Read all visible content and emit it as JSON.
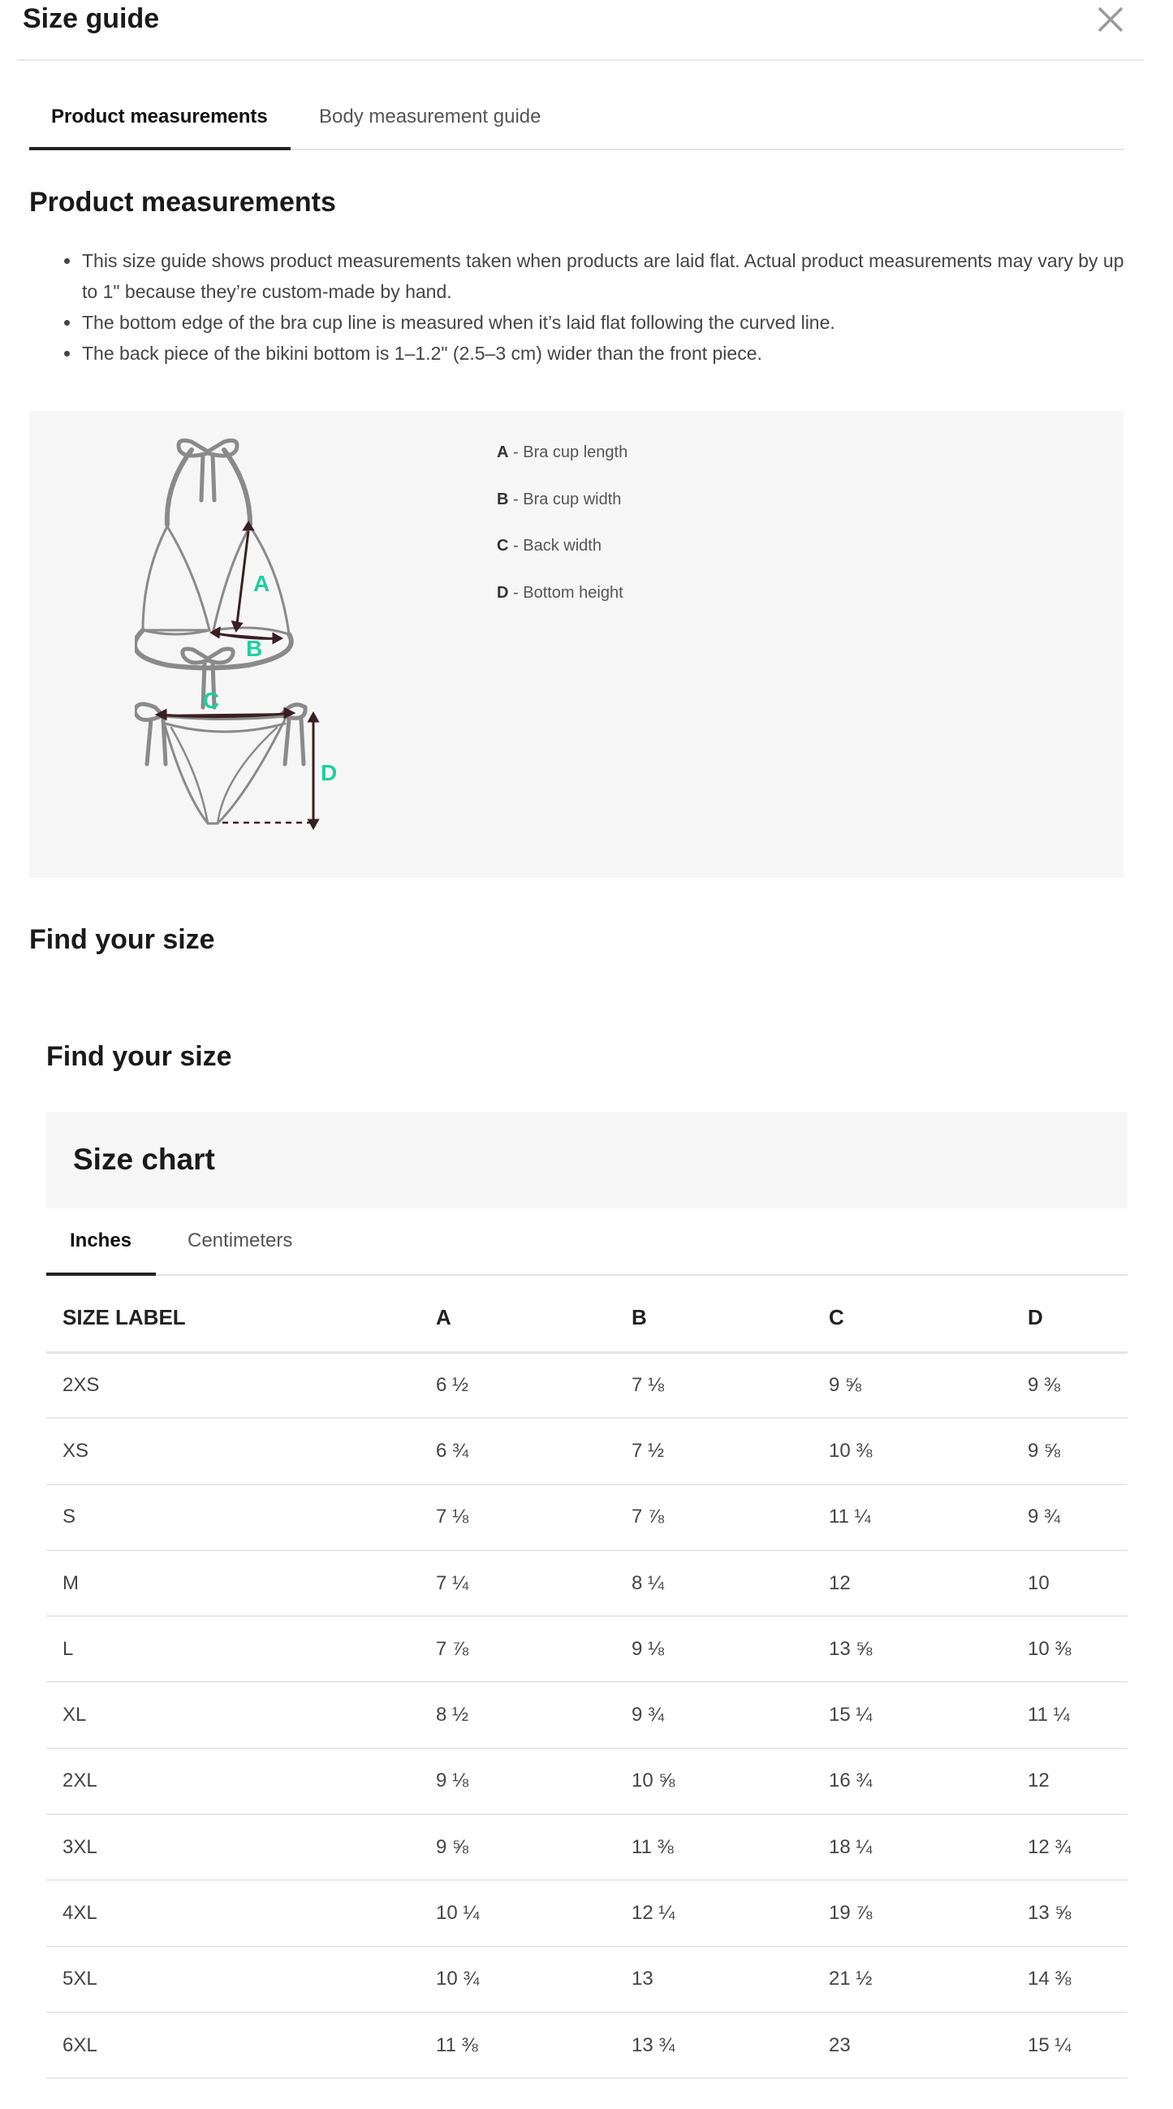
{
  "modal": {
    "title": "Size guide",
    "close_icon": "close-x-icon"
  },
  "tabs": [
    {
      "label": "Product measurements",
      "active": true
    },
    {
      "label": "Body measurement guide",
      "active": false
    }
  ],
  "product": {
    "heading": "Product measurements",
    "bullets": [
      "This size guide shows product measurements taken when products are laid flat. Actual product measurements may vary by up to 1\" because they’re custom-made by hand.",
      "The bottom edge of the bra cup line is measured when it’s laid flat following the curved line.",
      "The back piece of the bikini bottom is 1–1.2\" (2.5–3 cm) wider than the front piece."
    ],
    "diagram": {
      "markers": [
        "A",
        "B",
        "C",
        "D"
      ],
      "marker_color": "#1fcfa0",
      "arrow_color": "#3a1f22",
      "outline_color": "#8a8a8a"
    },
    "legend": [
      {
        "key": "A",
        "text": " - Bra cup length"
      },
      {
        "key": "B",
        "text": " - Bra cup width"
      },
      {
        "key": "C",
        "text": " - Back width"
      },
      {
        "key": "D",
        "text": " - Bottom height"
      }
    ]
  },
  "find_size_heading": "Find your size",
  "find_size_heading_2": "Find your size",
  "size_chart": {
    "title": "Size chart",
    "unit_tabs": [
      {
        "label": "Inches",
        "active": true
      },
      {
        "label": "Centimeters",
        "active": false
      }
    ],
    "columns": [
      "SIZE LABEL",
      "A",
      "B",
      "C",
      "D"
    ],
    "rows": [
      [
        "2XS",
        "6 ½",
        "7 ⅛",
        "9 ⅝",
        "9 ⅜"
      ],
      [
        "XS",
        "6 ¾",
        "7 ½",
        "10 ⅜",
        "9 ⅝"
      ],
      [
        "S",
        "7 ⅛",
        "7 ⅞",
        "11 ¼",
        "9 ¾"
      ],
      [
        "M",
        "7 ¼",
        "8 ¼",
        "12",
        "10"
      ],
      [
        "L",
        "7 ⅞",
        "9 ⅛",
        "13 ⅝",
        "10 ⅜"
      ],
      [
        "XL",
        "8 ½",
        "9 ¾",
        "15 ¼",
        "11 ¼"
      ],
      [
        "2XL",
        "9 ⅛",
        "10 ⅝",
        "16 ¾",
        "12"
      ],
      [
        "3XL",
        "9 ⅝",
        "11 ⅜",
        "18 ¼",
        "12 ¾"
      ],
      [
        "4XL",
        "10 ¼",
        "12 ¼",
        "19 ⅞",
        "13 ⅝"
      ],
      [
        "5XL",
        "10 ¾",
        "13",
        "21 ½",
        "14 ⅜"
      ],
      [
        "6XL",
        "11 ⅜",
        "13 ¾",
        "23",
        "15 ¼"
      ]
    ]
  }
}
